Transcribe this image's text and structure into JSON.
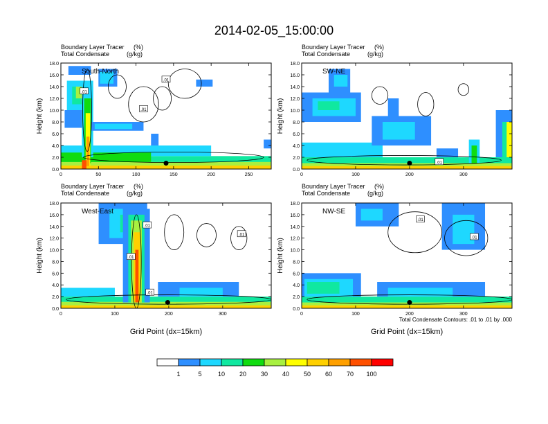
{
  "figure": {
    "title": "2014-02-05_15:00:00",
    "footnote": "Total Condensate Contours: .01 to .01 by .000"
  },
  "chart_data": [
    {
      "type": "heatmap",
      "id": "south-north",
      "panel_label": "South-North",
      "title_left": [
        "Boundary Layer Tracer",
        "Total Condensate"
      ],
      "title_right": [
        "(%)",
        "(g/kg)"
      ],
      "xlabel": "",
      "ylabel": "Height (km)",
      "xlim": [
        0,
        280
      ],
      "xticks": [
        0,
        50,
        100,
        150,
        200,
        250
      ],
      "ylim": [
        0,
        18
      ],
      "yticks": [
        "0.0",
        "2.0",
        "4.0",
        "6.0",
        "8.0",
        "10.0",
        "12.0",
        "14.0",
        "16.0",
        "18.0"
      ],
      "contour_labels": [
        {
          "text": ".01",
          "x": 31,
          "y": 13.2
        },
        {
          "text": ".01",
          "x": 110,
          "y": 10.2
        },
        {
          "text": ".01",
          "x": 140,
          "y": 15.2
        }
      ],
      "marker": {
        "x": 140,
        "y": 1.0
      },
      "shading": [
        {
          "level": 3,
          "x": 0,
          "y": 0,
          "w": 280,
          "h": 2.2
        },
        {
          "level": 5,
          "x": 0,
          "y": 0,
          "w": 280,
          "h": 1.2
        },
        {
          "level": 7,
          "x": 0,
          "y": 0,
          "w": 280,
          "h": 0.6
        },
        {
          "level": 2,
          "x": 0,
          "y": 2.2,
          "w": 200,
          "h": 1.8
        },
        {
          "level": 4,
          "x": 0,
          "y": 1.2,
          "w": 120,
          "h": 1.6
        },
        {
          "level": 1,
          "x": 5,
          "y": 7,
          "w": 30,
          "h": 3
        },
        {
          "level": 2,
          "x": 8,
          "y": 10,
          "w": 35,
          "h": 5
        },
        {
          "level": 3,
          "x": 15,
          "y": 11,
          "w": 25,
          "h": 3
        },
        {
          "level": 5,
          "x": 20,
          "y": 12,
          "w": 10,
          "h": 2
        },
        {
          "level": 1,
          "x": 10,
          "y": 16,
          "w": 30,
          "h": 1.5
        },
        {
          "level": 2,
          "x": 28,
          "y": 2,
          "w": 15,
          "h": 12
        },
        {
          "level": 4,
          "x": 31,
          "y": 1,
          "w": 9,
          "h": 11
        },
        {
          "level": 6,
          "x": 33,
          "y": 0.5,
          "w": 6,
          "h": 9
        },
        {
          "level": 8,
          "x": 34,
          "y": 0.5,
          "w": 4,
          "h": 5
        },
        {
          "level": 1,
          "x": 40,
          "y": 6.5,
          "w": 70,
          "h": 1.5
        },
        {
          "level": 2,
          "x": 45,
          "y": 6.8,
          "w": 50,
          "h": 0.9
        },
        {
          "level": 1,
          "x": 50,
          "y": 14,
          "w": 25,
          "h": 3
        },
        {
          "level": 2,
          "x": 52,
          "y": 14.5,
          "w": 18,
          "h": 2
        },
        {
          "level": 1,
          "x": 120,
          "y": 4,
          "w": 10,
          "h": 2
        },
        {
          "level": 1,
          "x": 180,
          "y": 14,
          "w": 22,
          "h": 1.2
        },
        {
          "level": 1,
          "x": 270,
          "y": 3.5,
          "w": 10,
          "h": 1.5
        },
        {
          "level": 9,
          "x": 28,
          "y": 0,
          "w": 6,
          "h": 1.5
        }
      ],
      "contours": [
        {
          "cx": 35,
          "cy": 10,
          "rx": 6,
          "ry": 7
        },
        {
          "cx": 110,
          "cy": 11,
          "rx": 20,
          "ry": 3
        },
        {
          "cx": 165,
          "cy": 14.5,
          "rx": 22,
          "ry": 2.5
        },
        {
          "cx": 135,
          "cy": 12,
          "rx": 12,
          "ry": 2
        },
        {
          "cx": 75,
          "cy": 14,
          "rx": 12,
          "ry": 2
        },
        {
          "cx": 150,
          "cy": 2,
          "rx": 120,
          "ry": 0.9
        }
      ]
    },
    {
      "type": "heatmap",
      "id": "sw-ne",
      "panel_label": "SW-NE",
      "title_left": [
        "Boundary Layer Tracer",
        "Total Condensate"
      ],
      "title_right": [
        "(%)",
        "(g/kg)"
      ],
      "xlabel": "",
      "ylabel": "Height (km)",
      "xlim": [
        0,
        390
      ],
      "xticks": [
        0,
        100,
        200,
        300
      ],
      "ylim": [
        0,
        18
      ],
      "yticks": [
        "0.0",
        "2.0",
        "4.0",
        "6.0",
        "8.0",
        "10.0",
        "12.0",
        "14.0",
        "16.0",
        "18.0"
      ],
      "contour_labels": [
        {
          "text": ".01",
          "x": 255,
          "y": 1.2
        }
      ],
      "marker": {
        "x": 200,
        "y": 1.0
      },
      "shading": [
        {
          "level": 3,
          "x": 0,
          "y": 0,
          "w": 390,
          "h": 2.0
        },
        {
          "level": 5,
          "x": 0,
          "y": 0,
          "w": 390,
          "h": 1.0
        },
        {
          "level": 7,
          "x": 0,
          "y": 0,
          "w": 390,
          "h": 0.5
        },
        {
          "level": 2,
          "x": 0,
          "y": 2,
          "w": 150,
          "h": 2.5
        },
        {
          "level": 1,
          "x": 0,
          "y": 8,
          "w": 110,
          "h": 5
        },
        {
          "level": 2,
          "x": 20,
          "y": 9,
          "w": 80,
          "h": 3
        },
        {
          "level": 3,
          "x": 30,
          "y": 10,
          "w": 40,
          "h": 1.5
        },
        {
          "level": 1,
          "x": 50,
          "y": 13,
          "w": 40,
          "h": 4
        },
        {
          "level": 2,
          "x": 60,
          "y": 14,
          "w": 25,
          "h": 2
        },
        {
          "level": 1,
          "x": 130,
          "y": 4,
          "w": 110,
          "h": 5
        },
        {
          "level": 2,
          "x": 150,
          "y": 5,
          "w": 60,
          "h": 3
        },
        {
          "level": 1,
          "x": 160,
          "y": 9,
          "w": 20,
          "h": 3
        },
        {
          "level": 2,
          "x": 310,
          "y": 1,
          "w": 20,
          "h": 4
        },
        {
          "level": 4,
          "x": 315,
          "y": 1,
          "w": 10,
          "h": 3
        },
        {
          "level": 1,
          "x": 360,
          "y": 2,
          "w": 30,
          "h": 8
        },
        {
          "level": 3,
          "x": 372,
          "y": 2,
          "w": 18,
          "h": 6
        },
        {
          "level": 6,
          "x": 380,
          "y": 2,
          "w": 10,
          "h": 6
        },
        {
          "level": 1,
          "x": 250,
          "y": 2,
          "w": 40,
          "h": 1.5
        }
      ],
      "contours": [
        {
          "cx": 145,
          "cy": 12.5,
          "rx": 15,
          "ry": 1.5
        },
        {
          "cx": 230,
          "cy": 11,
          "rx": 15,
          "ry": 2
        },
        {
          "cx": 300,
          "cy": 13.5,
          "rx": 10,
          "ry": 1
        },
        {
          "cx": 190,
          "cy": 1.5,
          "rx": 180,
          "ry": 0.8
        }
      ]
    },
    {
      "type": "heatmap",
      "id": "west-east",
      "panel_label": "West-East",
      "title_left": [
        "Boundary Layer Tracer",
        "Total Condensate"
      ],
      "title_right": [
        "(%)",
        "(g/kg)"
      ],
      "xlabel": "Grid Point (dx=15km)",
      "ylabel": "Height (km)",
      "xlim": [
        0,
        390
      ],
      "xticks": [
        0,
        100,
        200,
        300
      ],
      "ylim": [
        0,
        18
      ],
      "yticks": [
        "0.0",
        "2.0",
        "4.0",
        "6.0",
        "8.0",
        "10.0",
        "12.0",
        "14.0",
        "16.0",
        "18.0"
      ],
      "contour_labels": [
        {
          "text": ".01",
          "x": 160,
          "y": 14.2
        },
        {
          "text": ".01",
          "x": 130,
          "y": 8.8
        },
        {
          "text": ".01",
          "x": 165,
          "y": 2.7
        },
        {
          "text": ".01",
          "x": 335,
          "y": 12.7
        }
      ],
      "marker": {
        "x": 198,
        "y": 1.0
      },
      "shading": [
        {
          "level": 3,
          "x": 0,
          "y": 0,
          "w": 390,
          "h": 2.0
        },
        {
          "level": 5,
          "x": 0,
          "y": 0,
          "w": 390,
          "h": 1.1
        },
        {
          "level": 7,
          "x": 0,
          "y": 0,
          "w": 390,
          "h": 0.5
        },
        {
          "level": 2,
          "x": 0,
          "y": 2,
          "w": 100,
          "h": 1.5
        },
        {
          "level": 1,
          "x": 180,
          "y": 2,
          "w": 150,
          "h": 2.5
        },
        {
          "level": 2,
          "x": 220,
          "y": 2,
          "w": 80,
          "h": 1.5
        },
        {
          "level": 1,
          "x": 70,
          "y": 11,
          "w": 90,
          "h": 7
        },
        {
          "level": 2,
          "x": 90,
          "y": 12,
          "w": 60,
          "h": 5
        },
        {
          "level": 3,
          "x": 110,
          "y": 13,
          "w": 30,
          "h": 3
        },
        {
          "level": 1,
          "x": 115,
          "y": 1,
          "w": 50,
          "h": 16
        },
        {
          "level": 3,
          "x": 125,
          "y": 1,
          "w": 30,
          "h": 15
        },
        {
          "level": 5,
          "x": 130,
          "y": 1,
          "w": 20,
          "h": 14
        },
        {
          "level": 7,
          "x": 135,
          "y": 1,
          "w": 12,
          "h": 12
        },
        {
          "level": 9,
          "x": 138,
          "y": 1,
          "w": 6,
          "h": 9
        }
      ],
      "contours": [
        {
          "cx": 140,
          "cy": 8,
          "rx": 9,
          "ry": 8
        },
        {
          "cx": 210,
          "cy": 13,
          "rx": 18,
          "ry": 3
        },
        {
          "cx": 270,
          "cy": 12.5,
          "rx": 18,
          "ry": 2
        },
        {
          "cx": 330,
          "cy": 12,
          "rx": 15,
          "ry": 2
        },
        {
          "cx": 200,
          "cy": 1.5,
          "rx": 190,
          "ry": 0.8
        }
      ]
    },
    {
      "type": "heatmap",
      "id": "nw-se",
      "panel_label": "NW-SE",
      "title_left": [
        "Boundary Layer Tracer",
        "Total Condensate"
      ],
      "title_right": [
        "(%)",
        "(g/kg)"
      ],
      "xlabel": "Grid Point (dx=15km)",
      "ylabel": "Height (km)",
      "xlim": [
        0,
        390
      ],
      "xticks": [
        0,
        100,
        200,
        300
      ],
      "ylim": [
        0,
        18
      ],
      "yticks": [
        "0.0",
        "2.0",
        "4.0",
        "6.0",
        "8.0",
        "10.0",
        "12.0",
        "14.0",
        "16.0",
        "18.0"
      ],
      "contour_labels": [
        {
          "text": ".01",
          "x": 220,
          "y": 15.2
        },
        {
          "text": ".01",
          "x": 320,
          "y": 12.2
        }
      ],
      "marker": {
        "x": 200,
        "y": 1.0
      },
      "shading": [
        {
          "level": 3,
          "x": 0,
          "y": 0,
          "w": 390,
          "h": 2.0
        },
        {
          "level": 5,
          "x": 0,
          "y": 0,
          "w": 390,
          "h": 1.0
        },
        {
          "level": 7,
          "x": 0,
          "y": 0,
          "w": 390,
          "h": 0.5
        },
        {
          "level": 1,
          "x": 0,
          "y": 2,
          "w": 110,
          "h": 4
        },
        {
          "level": 2,
          "x": 5,
          "y": 2,
          "w": 90,
          "h": 3
        },
        {
          "level": 3,
          "x": 10,
          "y": 2.5,
          "w": 60,
          "h": 2
        },
        {
          "level": 1,
          "x": 140,
          "y": 2,
          "w": 200,
          "h": 2.5
        },
        {
          "level": 2,
          "x": 160,
          "y": 2,
          "w": 120,
          "h": 1.5
        },
        {
          "level": 1,
          "x": 100,
          "y": 14,
          "w": 80,
          "h": 4
        },
        {
          "level": 2,
          "x": 110,
          "y": 15,
          "w": 40,
          "h": 2
        },
        {
          "level": 1,
          "x": 260,
          "y": 10,
          "w": 80,
          "h": 8
        },
        {
          "level": 2,
          "x": 280,
          "y": 11,
          "w": 40,
          "h": 5
        }
      ],
      "contours": [
        {
          "cx": 210,
          "cy": 13,
          "rx": 50,
          "ry": 3.5
        },
        {
          "cx": 305,
          "cy": 12,
          "rx": 40,
          "ry": 3
        },
        {
          "cx": 200,
          "cy": 1.5,
          "rx": 190,
          "ry": 0.8
        }
      ]
    }
  ],
  "colorbar": {
    "labels": [
      "1",
      "5",
      "10",
      "20",
      "30",
      "40",
      "50",
      "60",
      "70",
      "100"
    ],
    "colors": [
      "#ffffff",
      "#2e8fff",
      "#1ed8ff",
      "#10e8a0",
      "#10dc10",
      "#a8f040",
      "#ffff00",
      "#ffd000",
      "#ffa000",
      "#ff5000",
      "#ff0000"
    ]
  },
  "shading_colors": [
    "#ffffff",
    "#2e8fff",
    "#1ed8ff",
    "#10e8a0",
    "#10dc10",
    "#a8f040",
    "#ffff00",
    "#ffd000",
    "#ffa000",
    "#ff5000",
    "#ff0000"
  ]
}
